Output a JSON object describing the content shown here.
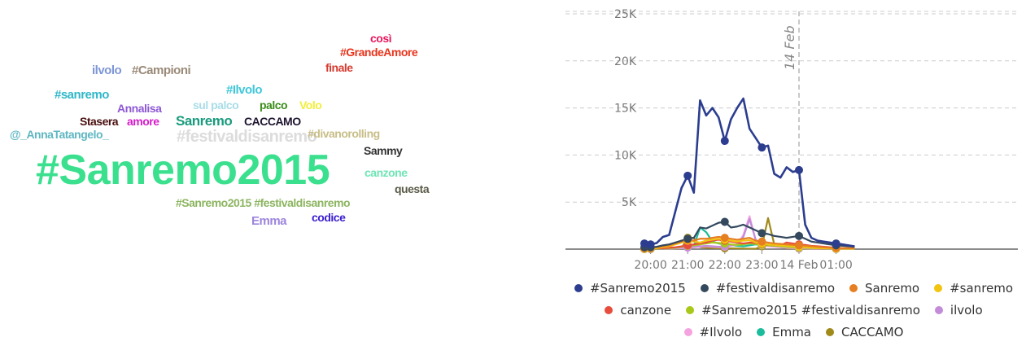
{
  "wordcloud": {
    "words": [
      {
        "text": "così",
        "color": "#e8175d",
        "size": 14
      },
      {
        "text": "#GrandeAmore",
        "color": "#e8341c",
        "size": 14
      },
      {
        "text": "finale",
        "color": "#d63a2f",
        "size": 14
      },
      {
        "text": "ilvolo",
        "color": "#7c96d6",
        "size": 15
      },
      {
        "text": "#Campioni",
        "color": "#9a8a78",
        "size": 15
      },
      {
        "text": "#Ilvolo",
        "color": "#3fc7d9",
        "size": 15
      },
      {
        "text": "#sanremo",
        "color": "#2fb7c9",
        "size": 15
      },
      {
        "text": "Annalisa",
        "color": "#8e58d6",
        "size": 14
      },
      {
        "text": "sul palco",
        "color": "#a8dde8",
        "size": 14
      },
      {
        "text": "palco",
        "color": "#3a8c18",
        "size": 14
      },
      {
        "text": "Volo",
        "color": "#f2ee3a",
        "size": 14
      },
      {
        "text": "Stasera",
        "color": "#4a1010",
        "size": 14
      },
      {
        "text": "amore",
        "color": "#d41cc9",
        "size": 14
      },
      {
        "text": "Sanremo",
        "color": "#1a9b7e",
        "size": 17
      },
      {
        "text": "CACCAMO",
        "color": "#1e1430",
        "size": 14
      },
      {
        "text": "@_AnnaTatangelo_",
        "color": "#5fb7c2",
        "size": 14
      },
      {
        "text": "#festivaldisanremo",
        "color": "#dcdcdc",
        "size": 20
      },
      {
        "text": "#divanorolling",
        "color": "#c8be88",
        "size": 14
      },
      {
        "text": "Sammy",
        "color": "#333333",
        "size": 14
      },
      {
        "text": "#Sanremo2015",
        "color": "#3be08f",
        "size": 52
      },
      {
        "text": "canzone",
        "color": "#6ee6b4",
        "size": 14
      },
      {
        "text": "questa",
        "color": "#5a5a48",
        "size": 14
      },
      {
        "text": "#Sanremo2015 #festivaldisanremo",
        "color": "#8cb560",
        "size": 14
      },
      {
        "text": "Emma",
        "color": "#9d84dc",
        "size": 15
      },
      {
        "text": "codice",
        "color": "#3b1ccf",
        "size": 14
      }
    ]
  },
  "chart_data": {
    "type": "line",
    "x": [
      "19:50",
      "20:00",
      "20:10",
      "20:20",
      "20:30",
      "20:40",
      "20:50",
      "21:00",
      "21:10",
      "21:20",
      "21:30",
      "21:40",
      "21:50",
      "22:00",
      "22:10",
      "22:20",
      "22:30",
      "22:40",
      "22:50",
      "23:00",
      "23:10",
      "23:20",
      "23:30",
      "23:40",
      "23:50",
      "00:00",
      "00:10",
      "00:20",
      "00:30",
      "00:40",
      "00:50",
      "01:00",
      "01:10",
      "01:20",
      "01:30"
    ],
    "x_tick_labels": [
      "20:00",
      "21:00",
      "22:00",
      "23:00",
      "14 Feb",
      "01:00"
    ],
    "y_tick_labels": [
      "5K",
      "10K",
      "15K",
      "20K",
      "25K"
    ],
    "ylim": [
      0,
      25000
    ],
    "annotation": {
      "label": "14 Feb",
      "x": "00:00"
    },
    "series": [
      {
        "name": "#Sanremo2015",
        "color": "#2c3d8f",
        "values": [
          600,
          500,
          650,
          1300,
          1500,
          4000,
          6500,
          7800,
          6000,
          15800,
          14200,
          15000,
          14000,
          11500,
          13800,
          15000,
          16000,
          12800,
          11800,
          10800,
          11000,
          8000,
          7600,
          8700,
          8200,
          8400,
          2600,
          1200,
          900,
          800,
          700,
          600,
          500,
          400,
          300
        ]
      },
      {
        "name": "#festivaldisanremo",
        "color": "#34495e",
        "values": [
          200,
          200,
          250,
          400,
          500,
          700,
          900,
          1100,
          1200,
          2300,
          2200,
          2500,
          2800,
          2900,
          2300,
          2400,
          2600,
          2300,
          2000,
          1700,
          1600,
          1400,
          1300,
          1200,
          1300,
          1400,
          1100,
          800,
          700,
          600,
          500,
          400,
          350,
          300,
          250
        ]
      },
      {
        "name": "Sanremo",
        "color": "#e67e22",
        "values": [
          100,
          150,
          200,
          300,
          400,
          600,
          800,
          1000,
          900,
          1100,
          1100,
          1200,
          1300,
          1200,
          1100,
          1000,
          1100,
          1200,
          900,
          800,
          700,
          600,
          550,
          500,
          450,
          400,
          350,
          300,
          250,
          200,
          150,
          120,
          100,
          100,
          100
        ]
      },
      {
        "name": "#sanremo",
        "color": "#f1c40f",
        "values": [
          50,
          80,
          100,
          200,
          300,
          500,
          700,
          900,
          800,
          700,
          900,
          1000,
          1100,
          1000,
          900,
          800,
          900,
          950,
          700,
          600,
          500,
          450,
          400,
          350,
          300,
          250,
          200,
          150,
          120,
          100,
          80,
          60,
          50,
          50,
          50
        ]
      },
      {
        "name": "canzone",
        "color": "#e74c3c",
        "values": [
          50,
          60,
          80,
          100,
          150,
          200,
          300,
          400,
          500,
          600,
          700,
          900,
          1000,
          900,
          800,
          700,
          600,
          700,
          650,
          550,
          500,
          450,
          400,
          700,
          600,
          500,
          450,
          350,
          300,
          250,
          200,
          150,
          100,
          80,
          60
        ]
      },
      {
        "name": "#Sanremo2015 #festivaldisanremo",
        "color": "#a8c81a",
        "values": [
          30,
          50,
          60,
          80,
          100,
          150,
          250,
          350,
          400,
          500,
          600,
          700,
          650,
          600,
          500,
          450,
          500,
          600,
          550,
          450,
          400,
          350,
          300,
          250,
          200,
          180,
          150,
          120,
          100,
          80,
          60,
          50,
          40,
          30,
          30
        ]
      },
      {
        "name": "ilvolo",
        "color": "#c38cd9",
        "values": [
          20,
          30,
          40,
          60,
          80,
          100,
          150,
          200,
          250,
          300,
          350,
          300,
          250,
          300,
          400,
          500,
          1300,
          3200,
          1000,
          500,
          400,
          350,
          300,
          250,
          200,
          150,
          120,
          100,
          80,
          60,
          50,
          40,
          30,
          20,
          20
        ]
      },
      {
        "name": "#Ilvolo",
        "color": "#f5a3e0",
        "values": [
          20,
          30,
          40,
          50,
          60,
          80,
          100,
          150,
          200,
          250,
          300,
          250,
          200,
          250,
          350,
          450,
          1500,
          3500,
          900,
          400,
          300,
          250,
          200,
          150,
          120,
          100,
          80,
          60,
          50,
          40,
          30,
          20,
          20,
          20,
          20
        ]
      },
      {
        "name": "Emma",
        "color": "#1abc9c",
        "values": [
          20,
          20,
          30,
          40,
          60,
          100,
          150,
          200,
          300,
          2300,
          1800,
          800,
          600,
          500,
          400,
          350,
          300,
          400,
          500,
          450,
          400,
          300,
          250,
          200,
          150,
          120,
          100,
          80,
          60,
          50,
          40,
          30,
          20,
          20,
          20
        ]
      },
      {
        "name": "CACCAMO",
        "color": "#a08a1a",
        "values": [
          10,
          10,
          20,
          30,
          40,
          60,
          80,
          1200,
          1200,
          200,
          150,
          120,
          100,
          90,
          80,
          70,
          60,
          50,
          40,
          300,
          3300,
          500,
          200,
          100,
          80,
          60,
          50,
          40,
          30,
          20,
          20,
          10,
          10,
          10,
          10
        ]
      }
    ]
  }
}
